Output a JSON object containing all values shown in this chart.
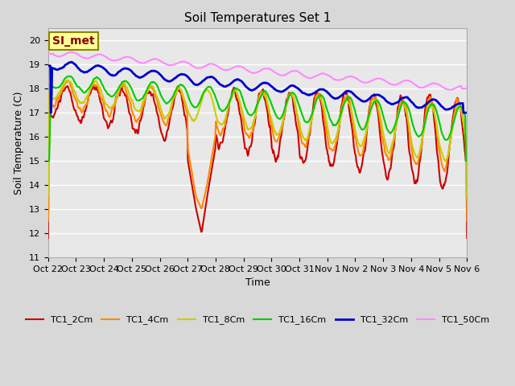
{
  "title": "Soil Temperatures Set 1",
  "xlabel": "Time",
  "ylabel": "Soil Temperature (C)",
  "ylim": [
    11.0,
    20.5
  ],
  "yticks": [
    11.0,
    12.0,
    13.0,
    14.0,
    15.0,
    16.0,
    17.0,
    18.0,
    19.0,
    20.0
  ],
  "xtick_labels": [
    "Oct 22",
    "Oct 23",
    "Oct 24",
    "Oct 25",
    "Oct 26",
    "Oct 27",
    "Oct 28",
    "Oct 29",
    "Oct 30",
    "Oct 31",
    "Nov 1",
    "Nov 2",
    "Nov 3",
    "Nov 4",
    "Nov 5",
    "Nov 6"
  ],
  "series_colors": {
    "TC1_2Cm": "#cc0000",
    "TC1_4Cm": "#ff8800",
    "TC1_8Cm": "#cccc00",
    "TC1_16Cm": "#00cc00",
    "TC1_32Cm": "#0000cc",
    "TC1_50Cm": "#ff88ff"
  },
  "series_linewidths": {
    "TC1_2Cm": 1.5,
    "TC1_4Cm": 1.5,
    "TC1_8Cm": 1.5,
    "TC1_16Cm": 1.5,
    "TC1_32Cm": 2.0,
    "TC1_50Cm": 1.5
  },
  "annotation_text": "SI_met",
  "annotation_bg": "#ffff99",
  "annotation_border": "#888800",
  "annotation_text_color": "#880000"
}
